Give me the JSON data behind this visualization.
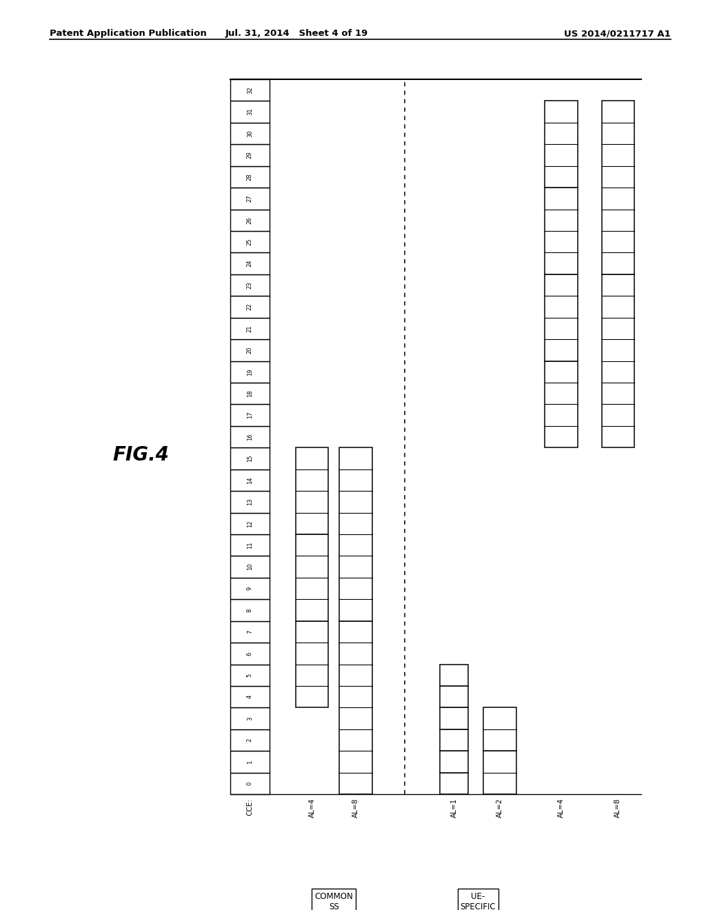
{
  "title_left": "Patent Application Publication",
  "title_center": "Jul. 31, 2014   Sheet 4 of 19",
  "title_right": "US 2014/0211717 A1",
  "fig_label": "FIG.4",
  "blocks": {
    "common_al4": [
      {
        "start": 4,
        "end": 8
      },
      {
        "start": 8,
        "end": 12
      },
      {
        "start": 12,
        "end": 16
      }
    ],
    "common_al8": [
      {
        "start": 0,
        "end": 8
      },
      {
        "start": 8,
        "end": 16
      }
    ],
    "ue_al1": [
      {
        "start": 0,
        "end": 1
      },
      {
        "start": 1,
        "end": 2
      },
      {
        "start": 2,
        "end": 3
      },
      {
        "start": 3,
        "end": 4
      },
      {
        "start": 4,
        "end": 5
      },
      {
        "start": 5,
        "end": 6
      }
    ],
    "ue_al2": [
      {
        "start": 0,
        "end": 2
      },
      {
        "start": 2,
        "end": 4
      }
    ],
    "ue_al4": [
      {
        "start": 16,
        "end": 20
      },
      {
        "start": 20,
        "end": 24
      },
      {
        "start": 24,
        "end": 28
      },
      {
        "start": 28,
        "end": 32
      }
    ],
    "ue_al8": [
      {
        "start": 16,
        "end": 24
      },
      {
        "start": 24,
        "end": 32
      }
    ]
  },
  "col_x": {
    "cce": 0.0,
    "common_al4": 1.5,
    "common_al8": 2.5,
    "dashed": 4.0,
    "ue_al1": 4.8,
    "ue_al2": 5.8,
    "ue_al4": 7.2,
    "ue_al8": 8.5
  },
  "col_w": {
    "cce": 0.9,
    "common_al4": 0.75,
    "common_al8": 0.75,
    "ue_al1": 0.65,
    "ue_al2": 0.75,
    "ue_al4": 0.75,
    "ue_al8": 0.75
  }
}
